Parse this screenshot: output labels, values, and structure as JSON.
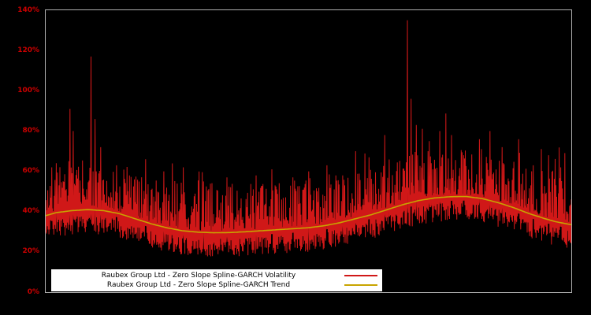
{
  "chart": {
    "background": "#000000",
    "plot_border_color": "#b0b0b0",
    "tick_color": "#cc0000",
    "legend_background": "#ffffff",
    "legend_text_color": "#000000"
  },
  "chart_data": {
    "type": "line",
    "title": "",
    "xlabel": "",
    "ylabel": "",
    "ylim": [
      0,
      140
    ],
    "y_ticks": [
      0,
      20,
      40,
      60,
      80,
      100,
      120,
      140
    ],
    "y_tick_format": "percent",
    "x_ticks": [],
    "grid": false,
    "legend_position": "bottom-left-inside",
    "series": [
      {
        "name": "Raubex Group Ltd - Zero Slope Spline-GARCH Volatility",
        "color": "#d01818",
        "style": "noisy-spiky"
      },
      {
        "name": "Raubex Group Ltd - Zero Slope Spline-GARCH Trend",
        "color": "#c8a400",
        "style": "smooth"
      }
    ],
    "trend_points": [
      [
        0.0,
        38.0
      ],
      [
        0.02,
        39.5
      ],
      [
        0.05,
        40.5
      ],
      [
        0.08,
        41.0
      ],
      [
        0.11,
        40.5
      ],
      [
        0.14,
        39.0
      ],
      [
        0.17,
        36.5
      ],
      [
        0.2,
        34.0
      ],
      [
        0.23,
        32.0
      ],
      [
        0.26,
        30.5
      ],
      [
        0.29,
        29.8
      ],
      [
        0.32,
        29.5
      ],
      [
        0.35,
        29.6
      ],
      [
        0.38,
        30.0
      ],
      [
        0.41,
        30.5
      ],
      [
        0.44,
        31.0
      ],
      [
        0.47,
        31.5
      ],
      [
        0.5,
        32.0
      ],
      [
        0.53,
        33.0
      ],
      [
        0.56,
        34.5
      ],
      [
        0.59,
        36.5
      ],
      [
        0.62,
        38.5
      ],
      [
        0.65,
        41.0
      ],
      [
        0.68,
        43.5
      ],
      [
        0.71,
        45.5
      ],
      [
        0.74,
        46.8
      ],
      [
        0.77,
        47.4
      ],
      [
        0.8,
        47.5
      ],
      [
        0.83,
        46.5
      ],
      [
        0.86,
        44.5
      ],
      [
        0.89,
        42.0
      ],
      [
        0.92,
        39.0
      ],
      [
        0.95,
        36.5
      ],
      [
        0.97,
        35.0
      ],
      [
        1.0,
        33.5
      ]
    ],
    "spikes": [
      [
        0.02,
        64
      ],
      [
        0.046,
        91
      ],
      [
        0.052,
        80
      ],
      [
        0.086,
        117
      ],
      [
        0.094,
        86
      ],
      [
        0.105,
        72
      ],
      [
        0.135,
        63
      ],
      [
        0.19,
        66
      ],
      [
        0.225,
        60
      ],
      [
        0.262,
        62
      ],
      [
        0.3,
        55
      ],
      [
        0.345,
        57
      ],
      [
        0.4,
        58
      ],
      [
        0.43,
        61
      ],
      [
        0.47,
        57
      ],
      [
        0.5,
        60
      ],
      [
        0.535,
        63
      ],
      [
        0.565,
        58
      ],
      [
        0.59,
        70
      ],
      [
        0.615,
        67
      ],
      [
        0.645,
        78
      ],
      [
        0.688,
        135
      ],
      [
        0.695,
        96
      ],
      [
        0.705,
        83
      ],
      [
        0.73,
        75
      ],
      [
        0.75,
        80
      ],
      [
        0.772,
        78
      ],
      [
        0.795,
        68
      ],
      [
        0.825,
        76
      ],
      [
        0.845,
        80
      ],
      [
        0.868,
        72
      ],
      [
        0.9,
        76
      ],
      [
        0.928,
        63
      ],
      [
        0.957,
        68
      ],
      [
        0.98,
        62
      ]
    ],
    "noise": {
      "seed": 42,
      "points": 1300,
      "above": 24,
      "below": 9
    }
  }
}
